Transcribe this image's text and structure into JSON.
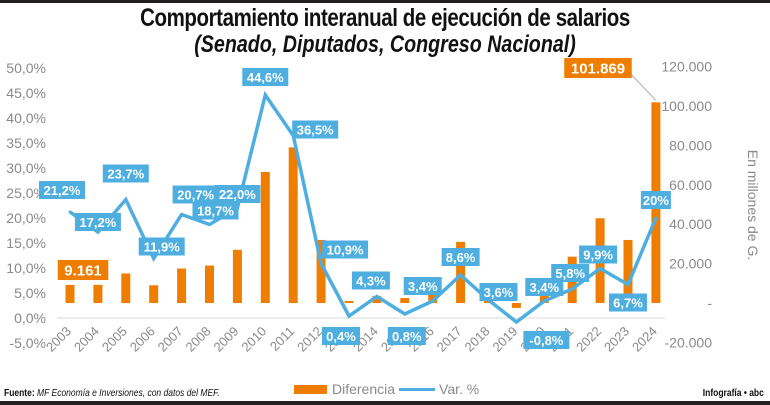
{
  "header": {
    "title": "Comportamiento interanual de ejecución de salarios",
    "subtitle": "(Senado, Diputados, Congreso Nacional)"
  },
  "footer": {
    "source_label": "Fuente:",
    "source_text": "MF Economía e Inversiones, con datos del MEF.",
    "credit": "Infografía • abc"
  },
  "colors": {
    "bar": "#ee7d00",
    "line": "#4eaee0",
    "label_bg": "#4eaee0",
    "axis_text": "#8a8a8a",
    "gridline": "#e6e6e6"
  },
  "chart_data": {
    "type": "bar+line",
    "title": "Comportamiento interanual de ejecución de salarios",
    "subtitle": "(Senado, Diputados, Congreso Nacional)",
    "categories": [
      "2003",
      "2004",
      "2005",
      "2006",
      "2007",
      "2008",
      "2009",
      "2010",
      "2011",
      "2012",
      "2013",
      "2014",
      "2015",
      "2016",
      "2017",
      "2018",
      "2019",
      "2020",
      "2021",
      "2022",
      "2023",
      "2024"
    ],
    "series": [
      {
        "name": "Diferencia",
        "type": "bar",
        "axis": "right",
        "values": [
          9161,
          9200,
          15000,
          9000,
          17500,
          19000,
          27000,
          66500,
          79000,
          32000,
          1000,
          3500,
          2500,
          6000,
          31000,
          6500,
          -2500,
          4000,
          23500,
          43000,
          32000,
          101869
        ],
        "labeled_points": [
          {
            "index": 0,
            "label": "9.161"
          },
          {
            "index": 21,
            "label": "101.869"
          }
        ]
      },
      {
        "name": "Var. %",
        "type": "line",
        "axis": "left",
        "values": [
          21.2,
          17.2,
          23.7,
          11.9,
          20.7,
          18.7,
          22.0,
          44.6,
          36.5,
          10.9,
          0.4,
          4.3,
          0.8,
          3.4,
          8.6,
          3.6,
          -0.8,
          3.4,
          5.8,
          9.9,
          6.7,
          20
        ],
        "labels": [
          "21,2%",
          "17,2%",
          "23,7%",
          "11,9%",
          "20,7%",
          "18,7%",
          "22,0%",
          "44,6%",
          "36,5%",
          "10,9%",
          "0,4%",
          "4,3%",
          "0,8%",
          "3,4%",
          "8,6%",
          "3,6%",
          "-0,8%",
          "3,4%",
          "5,8%",
          "9,9%",
          "6,7%",
          "20%"
        ]
      }
    ],
    "left_axis": {
      "ylim": [
        -5,
        50
      ],
      "ticks": [
        "-5,0%",
        "0,0%",
        "5,0%",
        "10,0%",
        "15,0%",
        "20,0%",
        "25,0%",
        "30,0%",
        "35,0%",
        "40,0%",
        "45,0%",
        "50,0%"
      ],
      "tick_values": [
        -5,
        0,
        5,
        10,
        15,
        20,
        25,
        30,
        35,
        40,
        45,
        50
      ]
    },
    "right_axis": {
      "ylim": [
        -20000,
        120000
      ],
      "ylabel": "En millones de G.",
      "ticks": [
        "-20.000",
        "-",
        "20.000",
        "40.000",
        "60.000",
        "80.000",
        "100.000",
        "120.000"
      ],
      "tick_values": [
        -20000,
        0,
        20000,
        40000,
        60000,
        80000,
        100000,
        120000
      ]
    },
    "legend": {
      "position": "bottom-center",
      "entries": [
        "Diferencia",
        "Var. %"
      ]
    },
    "grid": false
  }
}
